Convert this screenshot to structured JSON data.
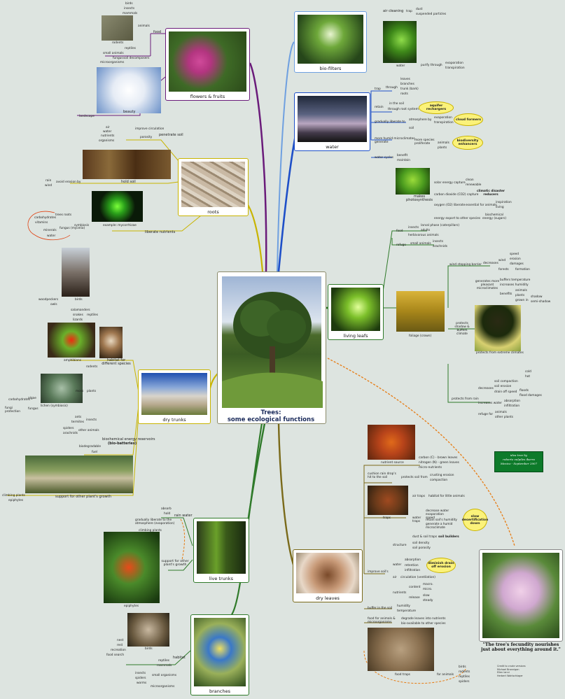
{
  "center": {
    "title_line1": "Trees:",
    "title_line2": "some ecological functions"
  },
  "captions": {
    "flowers": "flowers & fruits",
    "roots": "roots",
    "biofilters": "bio-filters",
    "water": "water",
    "living_leafs": "living leafs",
    "dry_trunks": "dry trunks",
    "live_trunks": "live trunks",
    "branches": "branches",
    "dry_leaves": "dry leaves",
    "foliage": "foliage (crown)",
    "flowers_sub_beauty": "beauty",
    "roots_sub_hold": "hold soil",
    "trunks_sub_habitat": "habitat for different species",
    "trunks_sub_support": "support for other plant's growth",
    "live_sub_epiphytes": "epiphytes",
    "branches_sub_birds": "birds",
    "water_cycle_img": "water",
    "leaf_photosynthesis": "makes photosynthesis",
    "crown_protect": "protects from extreme climates",
    "dl_nutrient": "nutrient source",
    "dl_traps": "traps",
    "dl_food": "food traps",
    "trunks_birds": "birds",
    "trunks_amphibians": "amphibians"
  },
  "flowers": {
    "food": "food",
    "animals": "animals",
    "small_animals": "small animals",
    "fungus": "fungus",
    "microorganisms": "microorganisms",
    "soil_decomposers": "soil decomposers",
    "birds": "birds",
    "insects": "insects",
    "mammals": "mammals",
    "rodents": "rodents",
    "reptiles": "reptiles",
    "landscape": "landscape"
  },
  "roots": {
    "penetrate": "penetrate soil",
    "improve_circulation": "improve circulation",
    "air": "air",
    "water": "water",
    "nutrients": "nutrients",
    "organisms": "organisms",
    "porosity": "porosity",
    "avoid_erosion": "avoid erosion by",
    "rain": "rain",
    "wind": "wind",
    "liberate": "liberate nutrients",
    "example": "example: mycorrhizae",
    "symbiosis": "symbiosis",
    "trees_roots": "trees roots",
    "fungus": "fungus (mycelia)",
    "carbohydrates": "carbohydrates",
    "vitamins": "vitamins",
    "minerals": "minerals",
    "water2": "water"
  },
  "biofilters": {
    "air_cleaning": "air cleaning",
    "trap": "trap",
    "dust": "dust",
    "suspended": "suspended particles",
    "purify": "purify through",
    "evaporation": "evaporation",
    "transpiration": "transpiration"
  },
  "water": {
    "trap": "trap",
    "through": "through",
    "leaves": "leaves",
    "branches": "branches",
    "trunk": "trunk (bark)",
    "roots": "roots",
    "retain": "retain",
    "in_soil": "in the soil",
    "through_root": "through root system",
    "aquifer": "aquifer rechargers",
    "gradually": "gradually liberate to",
    "atmosphere": "atmosphere by",
    "evaporation": "evaporation",
    "transpiration": "transpiration",
    "soil": "soil",
    "cloud": "cloud formers",
    "more_humid": "more humid microclimates generate",
    "more_species": "more species proliferate",
    "animals": "animals",
    "plants": "plants",
    "biodiversity": "biodiversity enhancers",
    "water_cycles": "water cycles",
    "benefit": "benefit",
    "maintain": "maintain"
  },
  "leafs": {
    "solar": "solar energy capture",
    "clean": "clean",
    "renewable": "renewable",
    "co2": "carbon dioxide (CO2) capture",
    "climatic": "climatic disaster reducers",
    "oxygen": "oxygen (O2) liberate",
    "essential": "essential for animals",
    "inspiration": "inspiration",
    "living": "living",
    "energy": "energy export to other species",
    "biochemical": "biochemical energy (sugars)",
    "food": "food",
    "insects": "insects",
    "larval": "larval phase (caterpillars)",
    "adults": "adults",
    "herbivores": "herbivorous animals",
    "refuge": "refuge",
    "small_animals": "small animals",
    "insects2": "insects",
    "arachnids": "arachnids"
  },
  "crown": {
    "wind_stop": "wind stopping barrier",
    "decreases": "decreases",
    "speed": "speed",
    "erosion": "erosion",
    "damages": "damages",
    "wind": "wind",
    "forests": "forests",
    "formation": "formation",
    "generates": "generates more pleasant microclimates",
    "buffers": "buffers temperature",
    "humidity": "increases humidity",
    "benefits": "benefits",
    "animals": "animals",
    "plants": "plants",
    "grown_in": "grown in",
    "shadow": "shadow",
    "semi_shadow": "semi-shadow",
    "protects": "protects shadow & buffers climate",
    "cold": "cold",
    "hot": "hot",
    "from_rain": "protects from rain",
    "decreases2": "decreases",
    "soil_compaction": "soil compaction",
    "soil_erosion": "soil erosion",
    "rain_runoff": "drain off speed",
    "floods": "floods",
    "flood_damages": "flood damages",
    "increases_water": "increases water",
    "absorption": "absorption",
    "infiltration": "infiltration",
    "refuge_for": "refuge for",
    "animals2": "animals",
    "other_plants": "other plants"
  },
  "trunks": {
    "woodpeckers": "woodpeckers",
    "owls": "owls",
    "salamanders": "salamanders",
    "snakes": "snakes",
    "lizards": "lizards",
    "reptiles": "reptiles",
    "rodents": "rodents",
    "plants": "plants",
    "moss": "moss",
    "lichen": "lichen (symbiosis)",
    "carbohydrates": "carbohydrates",
    "algae": "algae",
    "fungus": "fungus",
    "fungi_protection": "fungi protection",
    "ants": "ants",
    "termites": "termites",
    "spiders": "spiders",
    "other_animals": "other animals",
    "insects": "insects",
    "arachnids": "arachnids",
    "reservoirs": "biochemical energy reservoirs",
    "bio_batteries": "(bio-batteries)",
    "biodegradable": "biodegradable",
    "fuel": "fuel",
    "climbing": "climbing plants",
    "epiphytes": "epiphytes"
  },
  "live_trunks": {
    "absorb": "absorb",
    "hold": "hold",
    "rain_water": "rain water",
    "gradually": "gradually liberate to the atmosphere (evaporation)",
    "climbing": "climbing plants",
    "support": "support for other plant's growth"
  },
  "branches": {
    "nest": "nest",
    "rest": "rest",
    "recreation": "recreation",
    "food_search": "food search",
    "habitat": "habitat",
    "reptiles": "reptiles",
    "mammals": "mammals",
    "small_organisms": "small organisms",
    "insects": "insects",
    "spiders": "spiders",
    "worms": "worms",
    "microorganisms": "microorganisms"
  },
  "dry_leaves": {
    "carbon": "carbon (C) - brown leaves",
    "nitrogen": "nitrogen (N) - green leaves",
    "micro": "micro-nutrients",
    "cushion": "cushion rain drop's hit to the soil",
    "protects": "protects soil from",
    "crusting": "crusting erosion",
    "compaction": "compaction",
    "air_traps": "air traps",
    "habitat_small": "habitat for little animals",
    "water_traps": "water traps",
    "decrease": "decrease water evaporation speed",
    "retain": "retain soil's humidity",
    "humid": "generate a humid microclimate",
    "slow_desert": "slow desertification down",
    "dust_traps": "dust & soil traps",
    "soil_builders": "soil builders",
    "improve": "improve soil's",
    "structure": "structure",
    "soil_density": "soil density",
    "porosity": "soil porosity",
    "water": "water",
    "absorption": "absorption",
    "retention": "retention",
    "infiltration": "infiltration",
    "diminish": "diminish drain off erosion",
    "air": "air",
    "circulation": "circulation (ventilation)",
    "nutrients": "nutrients",
    "content": "content",
    "macro": "macro.",
    "micro2": "micro.",
    "release": "release",
    "slow": "slow",
    "steady": "steady",
    "buffer": "buffer in the soil",
    "humidity": "humidity",
    "temperature": "temperature",
    "food_for": "food for animals & microorganisms",
    "degrade": "degrade leaves into nutrients",
    "avail": "bio-available to other species",
    "for_animals": "for animals",
    "birds": "birds",
    "rodents": "rodents",
    "reptiles": "reptiles",
    "spiders": "spiders"
  },
  "signature": {
    "l1": "idea tree by",
    "l2": "roberto vulpiles ibarra",
    "l3": "Mexico - September 2007"
  },
  "quote": "\"The tree's fecundity nourishes just about everything around it.\"",
  "credits": {
    "c1": "Credit to crude versions",
    "c2": "Michael Brannigan",
    "c3": "Ellen Ianni",
    "c4": "Herbert Wohlschlager"
  },
  "colors": {
    "purple": "#6a1b7a",
    "blue": "#1e4fc8",
    "green": "#2f7a2a",
    "yellow": "#c8b400",
    "orange": "#e77b12",
    "olive": "#7a6a1a",
    "darkgreen": "#0d7a2a"
  }
}
